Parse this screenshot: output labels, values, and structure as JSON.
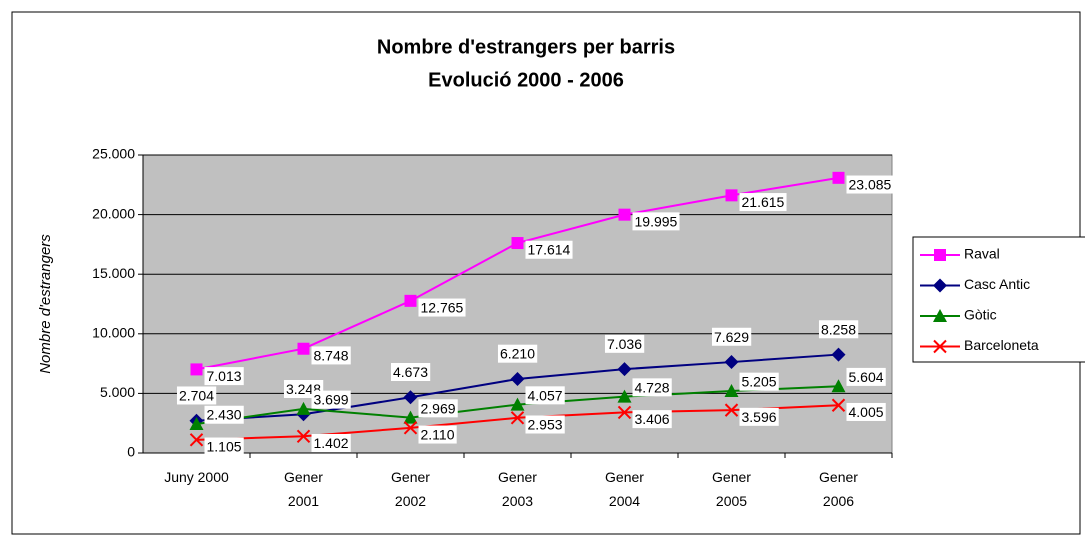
{
  "chart_data": {
    "type": "line",
    "title": "Nombre d'estrangers per barris",
    "subtitle": "Evolució 2000 - 2006",
    "y_label": "Nombre d'estrangers",
    "categories": [
      "Juny 2000",
      "Gener\n2001",
      "Gener\n2002",
      "Gener\n2003",
      "Gener\n2004",
      "Gener\n2005",
      "Gener\n2006"
    ],
    "ylim": [
      0,
      25000
    ],
    "yticks": [
      0,
      {
        "value": 5000,
        "label": "5.000"
      },
      {
        "value": 10000,
        "label": "10.000"
      },
      {
        "value": 15000,
        "label": "15.000"
      },
      {
        "value": 20000,
        "label": "20.000"
      },
      {
        "value": 25000,
        "label": "25.000"
      }
    ],
    "grid": true,
    "legend": "right",
    "series": [
      {
        "name": "Raval",
        "color": "#ff00ff",
        "marker": "square",
        "values": [
          7013,
          8748,
          12765,
          17614,
          19995,
          21615,
          23085
        ],
        "value_labels": [
          "7.013",
          "8.748",
          "12.765",
          "17.614",
          "19.995",
          "21.615",
          "23.085"
        ]
      },
      {
        "name": "Casc Antic",
        "color": "#000080",
        "marker": "diamond",
        "values": [
          2704,
          3248,
          4673,
          6210,
          7036,
          7629,
          8258
        ],
        "value_labels": [
          "2.704",
          "3.248",
          "4.673",
          "6.210",
          "7.036",
          "7.629",
          "8.258"
        ]
      },
      {
        "name": "Gòtic",
        "color": "#008000",
        "marker": "triangle",
        "values": [
          2430,
          3699,
          2969,
          4057,
          4728,
          5205,
          5604
        ],
        "value_labels": [
          "2.430",
          "3.699",
          "2.969",
          "4.057",
          "4.728",
          "5.205",
          "5.604"
        ]
      },
      {
        "name": "Barceloneta",
        "color": "#ff0000",
        "marker": "x",
        "values": [
          1105,
          1402,
          2110,
          2953,
          3406,
          3596,
          4005
        ],
        "value_labels": [
          "1.105",
          "1.402",
          "2.110",
          "2.953",
          "3.406",
          "3.596",
          "4.005"
        ]
      }
    ]
  }
}
